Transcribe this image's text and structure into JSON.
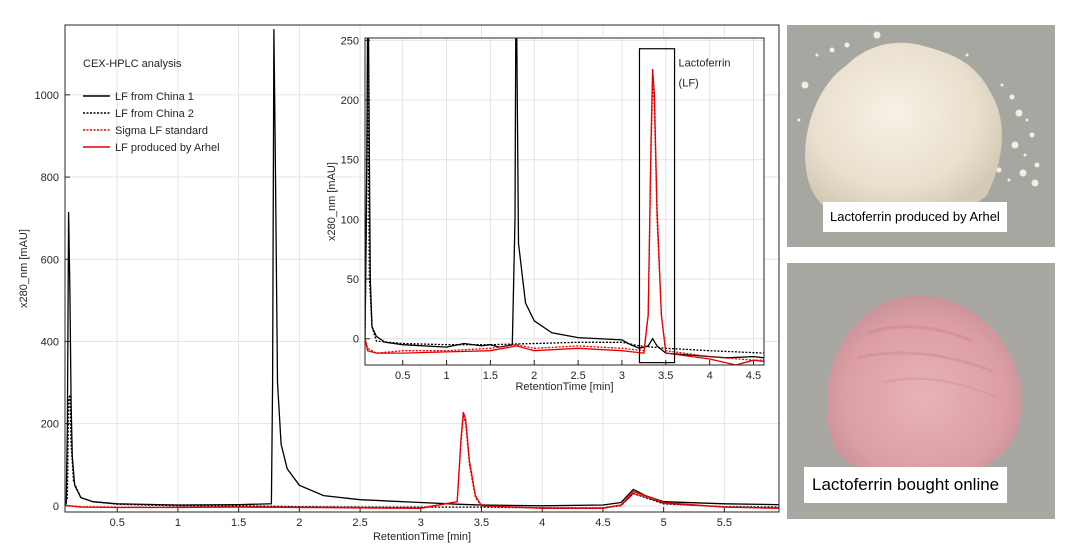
{
  "chart_data": [
    {
      "id": "main",
      "type": "line",
      "title": "CEX-HPLC analysis",
      "xlabel": "RetentionTime [min]",
      "ylabel": "x280_nm [mAU]",
      "xlim": [
        0.07,
        5.95
      ],
      "ylim": [
        -15,
        1170
      ],
      "xticks": [
        0.5,
        1,
        1.5,
        2,
        2.5,
        3,
        3.5,
        4,
        4.5,
        5,
        5.5
      ],
      "yticks": [
        0,
        200,
        400,
        600,
        800,
        1000
      ],
      "grid": true,
      "legend_position": "top-left",
      "series": [
        {
          "name": "LF from China 1",
          "color": "#000000",
          "dash": "solid",
          "points": [
            [
              0.07,
              0
            ],
            [
              0.08,
              5
            ],
            [
              0.09,
              200
            ],
            [
              0.1,
              715
            ],
            [
              0.11,
              520
            ],
            [
              0.12,
              250
            ],
            [
              0.13,
              120
            ],
            [
              0.15,
              50
            ],
            [
              0.2,
              20
            ],
            [
              0.3,
              10
            ],
            [
              0.5,
              5
            ],
            [
              1.0,
              2
            ],
            [
              1.5,
              3
            ],
            [
              1.77,
              5
            ],
            [
              1.78,
              300
            ],
            [
              1.79,
              1160
            ],
            [
              1.8,
              900
            ],
            [
              1.82,
              300
            ],
            [
              1.85,
              150
            ],
            [
              1.9,
              90
            ],
            [
              2.0,
              50
            ],
            [
              2.2,
              25
            ],
            [
              2.5,
              15
            ],
            [
              3.0,
              8
            ],
            [
              3.3,
              4
            ],
            [
              3.5,
              2
            ],
            [
              4.0,
              0
            ],
            [
              4.5,
              2
            ],
            [
              4.65,
              8
            ],
            [
              4.75,
              40
            ],
            [
              4.85,
              25
            ],
            [
              5.0,
              10
            ],
            [
              5.5,
              5
            ],
            [
              5.95,
              3
            ]
          ]
        },
        {
          "name": "LF from China 2",
          "color": "#000000",
          "dash": "dotted",
          "points": [
            [
              0.07,
              0
            ],
            [
              0.09,
              20
            ],
            [
              0.1,
              260
            ],
            [
              0.11,
              270
            ],
            [
              0.12,
              150
            ],
            [
              0.14,
              60
            ],
            [
              0.2,
              20
            ],
            [
              0.3,
              10
            ],
            [
              0.5,
              4
            ],
            [
              1.0,
              0
            ],
            [
              1.5,
              0
            ],
            [
              2.0,
              -2
            ],
            [
              2.5,
              -3
            ],
            [
              3.0,
              -3
            ],
            [
              3.5,
              -3
            ],
            [
              4.0,
              -5
            ],
            [
              4.5,
              -5
            ],
            [
              4.65,
              2
            ],
            [
              4.75,
              30
            ],
            [
              4.85,
              20
            ],
            [
              5.0,
              5
            ],
            [
              5.5,
              -2
            ],
            [
              5.95,
              -3
            ]
          ]
        },
        {
          "name": "Sigma LF standard",
          "color": "#e60000",
          "dash": "dotted",
          "points": [
            [
              0.07,
              0
            ],
            [
              0.1,
              0
            ],
            [
              0.2,
              -2
            ],
            [
              0.5,
              -3
            ],
            [
              1.0,
              -3
            ],
            [
              1.5,
              -2
            ],
            [
              2.0,
              -3
            ],
            [
              3.0,
              -5
            ],
            [
              3.3,
              10
            ],
            [
              3.33,
              150
            ],
            [
              3.35,
              220
            ],
            [
              3.37,
              200
            ],
            [
              3.4,
              100
            ],
            [
              3.45,
              20
            ],
            [
              3.5,
              0
            ],
            [
              4.0,
              -5
            ],
            [
              4.5,
              -5
            ],
            [
              4.65,
              0
            ],
            [
              4.75,
              30
            ],
            [
              4.85,
              22
            ],
            [
              5.0,
              6
            ],
            [
              5.5,
              -3
            ],
            [
              5.95,
              -5
            ]
          ]
        },
        {
          "name": "LF produced by Arhel",
          "color": "#e60000",
          "dash": "solid",
          "points": [
            [
              0.07,
              0
            ],
            [
              0.1,
              0
            ],
            [
              0.2,
              -3
            ],
            [
              0.5,
              -4
            ],
            [
              1.0,
              -4
            ],
            [
              1.5,
              -3
            ],
            [
              2.0,
              -4
            ],
            [
              3.0,
              -6
            ],
            [
              3.3,
              10
            ],
            [
              3.33,
              160
            ],
            [
              3.35,
              228
            ],
            [
              3.37,
              210
            ],
            [
              3.4,
              110
            ],
            [
              3.45,
              25
            ],
            [
              3.5,
              0
            ],
            [
              4.0,
              -6
            ],
            [
              4.5,
              -6
            ],
            [
              4.65,
              2
            ],
            [
              4.75,
              35
            ],
            [
              4.85,
              25
            ],
            [
              5.0,
              8
            ],
            [
              5.5,
              -3
            ],
            [
              5.95,
              -6
            ]
          ]
        }
      ]
    },
    {
      "id": "inset",
      "type": "line",
      "title": "",
      "xlabel": "RetentionTime [min]",
      "ylabel": "x280_nm [mAU]",
      "xlim": [
        0.07,
        4.62
      ],
      "ylim": [
        -22,
        252
      ],
      "xticks": [
        0.5,
        1,
        1.5,
        2,
        2.5,
        3,
        3.5,
        4,
        4.5
      ],
      "yticks": [
        0,
        50,
        100,
        150,
        200,
        250
      ],
      "grid": true,
      "annotation": {
        "label_line1": "Lactoferrin",
        "label_line2": "(LF)",
        "x_range": [
          3.2,
          3.6
        ],
        "y_range": [
          -20,
          243
        ]
      },
      "series": [
        {
          "name": "LF from China 1",
          "color": "#000000",
          "dash": "solid",
          "points": [
            [
              0.07,
              0
            ],
            [
              0.09,
              150
            ],
            [
              0.1,
              260
            ],
            [
              0.11,
              260
            ],
            [
              0.12,
              150
            ],
            [
              0.13,
              50
            ],
            [
              0.15,
              10
            ],
            [
              0.2,
              2
            ],
            [
              0.3,
              -3
            ],
            [
              0.5,
              -5
            ],
            [
              1.0,
              -7
            ],
            [
              1.2,
              -4
            ],
            [
              1.4,
              -6
            ],
            [
              1.5,
              -5
            ],
            [
              1.6,
              -7
            ],
            [
              1.75,
              -5
            ],
            [
              1.78,
              100
            ],
            [
              1.79,
              260
            ],
            [
              1.8,
              260
            ],
            [
              1.82,
              80
            ],
            [
              1.9,
              30
            ],
            [
              2.0,
              15
            ],
            [
              2.2,
              5
            ],
            [
              2.5,
              1
            ],
            [
              3.0,
              -1
            ],
            [
              3.1,
              -5
            ],
            [
              3.2,
              -8
            ],
            [
              3.3,
              -6
            ],
            [
              3.35,
              0
            ],
            [
              3.4,
              -6
            ],
            [
              3.5,
              -12
            ],
            [
              4.0,
              -15
            ],
            [
              4.2,
              -16
            ],
            [
              4.5,
              -15
            ],
            [
              4.62,
              -16
            ]
          ]
        },
        {
          "name": "LF from China 2",
          "color": "#000000",
          "dash": "dotted",
          "points": [
            [
              0.07,
              0
            ],
            [
              0.09,
              120
            ],
            [
              0.1,
              250
            ],
            [
              0.11,
              150
            ],
            [
              0.12,
              50
            ],
            [
              0.15,
              10
            ],
            [
              0.2,
              -2
            ],
            [
              0.5,
              -4
            ],
            [
              1.0,
              -5
            ],
            [
              1.5,
              -5
            ],
            [
              2.0,
              -4
            ],
            [
              2.5,
              -3
            ],
            [
              3.0,
              -3
            ],
            [
              3.2,
              -6
            ],
            [
              3.5,
              -8
            ],
            [
              4.0,
              -10
            ],
            [
              4.62,
              -12
            ]
          ]
        },
        {
          "name": "Sigma LF standard",
          "color": "#e60000",
          "dash": "dotted",
          "points": [
            [
              0.07,
              0
            ],
            [
              0.1,
              -8
            ],
            [
              0.2,
              -12
            ],
            [
              0.5,
              -10
            ],
            [
              1.0,
              -10
            ],
            [
              1.5,
              -8
            ],
            [
              1.8,
              -5
            ],
            [
              2.0,
              -8
            ],
            [
              2.5,
              -6
            ],
            [
              3.0,
              -8
            ],
            [
              3.25,
              -10
            ],
            [
              3.3,
              20
            ],
            [
              3.33,
              150
            ],
            [
              3.35,
              215
            ],
            [
              3.37,
              195
            ],
            [
              3.4,
              100
            ],
            [
              3.45,
              20
            ],
            [
              3.5,
              -10
            ],
            [
              4.0,
              -15
            ],
            [
              4.5,
              -18
            ],
            [
              4.62,
              -18
            ]
          ]
        },
        {
          "name": "LF produced by Arhel",
          "color": "#e60000",
          "dash": "solid",
          "points": [
            [
              0.07,
              0
            ],
            [
              0.1,
              -10
            ],
            [
              0.2,
              -12
            ],
            [
              0.5,
              -12
            ],
            [
              1.0,
              -11
            ],
            [
              1.5,
              -10
            ],
            [
              1.8,
              -6
            ],
            [
              2.0,
              -10
            ],
            [
              2.5,
              -8
            ],
            [
              3.0,
              -10
            ],
            [
              3.25,
              -12
            ],
            [
              3.3,
              20
            ],
            [
              3.33,
              160
            ],
            [
              3.35,
              226
            ],
            [
              3.37,
              205
            ],
            [
              3.4,
              110
            ],
            [
              3.45,
              20
            ],
            [
              3.5,
              -12
            ],
            [
              4.0,
              -17
            ],
            [
              4.3,
              -22
            ],
            [
              4.5,
              -18
            ],
            [
              4.62,
              -19
            ]
          ]
        }
      ]
    }
  ],
  "photos": {
    "white": {
      "caption": "Lactoferrin produced by Arhel",
      "powder_color": "#ece3d3"
    },
    "pink": {
      "caption": "Lactoferrin bought online",
      "powder_color": "#dd9fa5"
    }
  }
}
